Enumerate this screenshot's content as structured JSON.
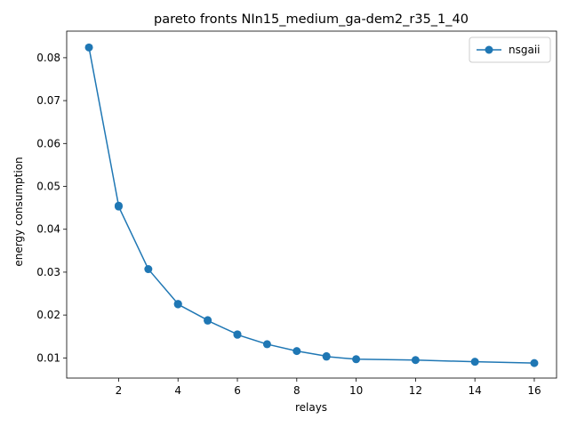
{
  "chart_data": {
    "type": "line",
    "title": "pareto fronts NIn15_medium_ga-dem2_r35_1_40",
    "xlabel": "relays",
    "ylabel": "energy consumption",
    "xlim": [
      0.25,
      16.75
    ],
    "ylim": [
      0.0053,
      0.0862
    ],
    "xticks": [
      2,
      4,
      6,
      8,
      10,
      12,
      14,
      16
    ],
    "yticks": [
      0.01,
      0.02,
      0.03,
      0.04,
      0.05,
      0.06,
      0.07,
      0.08
    ],
    "ytick_labels": [
      "0.01",
      "0.02",
      "0.03",
      "0.04",
      "0.05",
      "0.06",
      "0.07",
      "0.08"
    ],
    "grid": false,
    "legend": {
      "position": "top-right"
    },
    "series": [
      {
        "name": "nsgaii",
        "color": "#1f77b4",
        "marker": "circle",
        "x": [
          1,
          2,
          2,
          3,
          4,
          4,
          5,
          5,
          6,
          6,
          7,
          8,
          9,
          9,
          10,
          12,
          14,
          16
        ],
        "y": [
          0.0824,
          0.0455,
          0.0453,
          0.0307,
          0.0226,
          0.0225,
          0.0188,
          0.0187,
          0.0155,
          0.0154,
          0.0132,
          0.0116,
          0.0104,
          0.0103,
          0.0097,
          0.0095,
          0.0091,
          0.0088
        ]
      }
    ]
  }
}
